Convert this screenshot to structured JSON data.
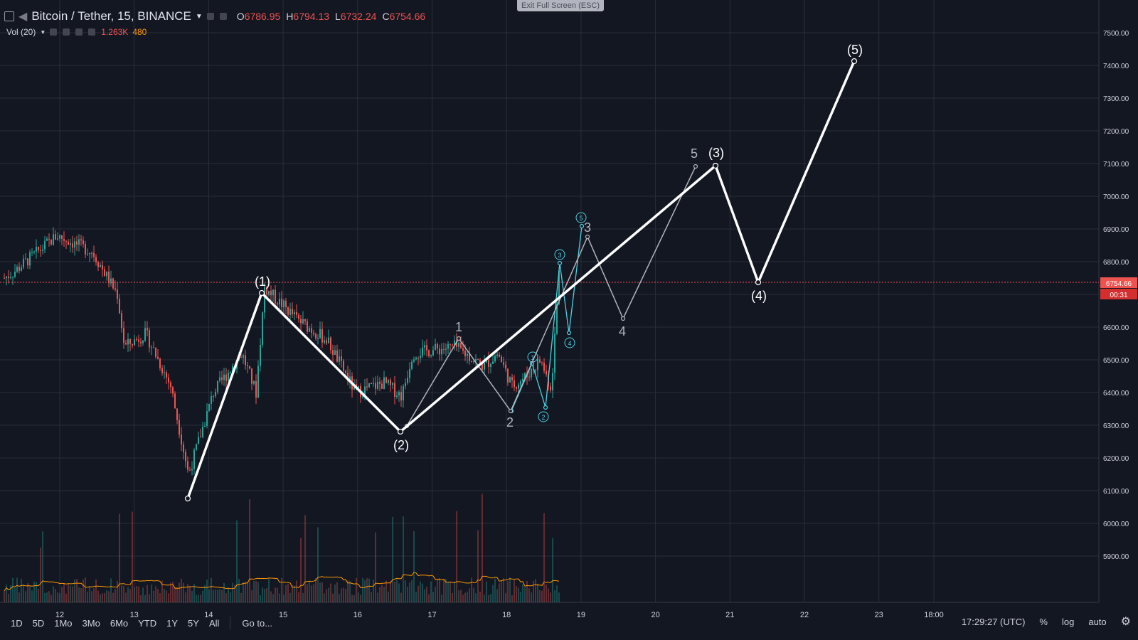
{
  "header": {
    "symbol": "Bitcoin / Tether, 15, BINANCE",
    "ohlc": [
      {
        "label": "O",
        "value": "6786.95"
      },
      {
        "label": "H",
        "value": "6794.13"
      },
      {
        "label": "L",
        "value": "6732.24"
      },
      {
        "label": "C",
        "value": "6754.66"
      }
    ],
    "volume_label": "Vol (20)",
    "volume_value1": "1.263K",
    "volume_value2": "480"
  },
  "exit_fullscreen": "Exit Full Screen (ESC)",
  "price_axis": {
    "ticks": [
      "7500.00",
      "7400.00",
      "7300.00",
      "7200.00",
      "7100.00",
      "7000.00",
      "6900.00",
      "6800.00",
      "6700.00",
      "6600.00",
      "6500.00",
      "6400.00",
      "6300.00",
      "6200.00",
      "6100.00",
      "6000.00",
      "5900.00"
    ],
    "current_price": "6754.66",
    "countdown": "00:31"
  },
  "time_axis": {
    "ticks": [
      "12",
      "13",
      "14",
      "15",
      "16",
      "17",
      "18",
      "19",
      "20",
      "21",
      "22",
      "23",
      "18:00"
    ]
  },
  "waves": {
    "primary_labels": [
      "(1)",
      "(2)",
      "(3)",
      "(4)",
      "(5)"
    ],
    "intermediate_labels": [
      "1",
      "2",
      "3",
      "4",
      "5"
    ],
    "minor_labels": [
      "1",
      "2",
      "3",
      "4",
      "5"
    ]
  },
  "bottom": {
    "ranges": [
      "1D",
      "5D",
      "1Mo",
      "3Mo",
      "6Mo",
      "YTD",
      "1Y",
      "5Y",
      "All"
    ],
    "goto": "Go to...",
    "time": "17:29:27 (UTC)",
    "percent": "%",
    "log": "log",
    "auto": "auto",
    "settings_icon": "gear-icon"
  },
  "colors": {
    "background": "#131722",
    "grid": "#2a2e39",
    "up": "#26a69a",
    "down": "#ef5350",
    "price_tag": "#ef5350",
    "wave_primary": "#ffffff",
    "wave_intermediate": "#b2b5be",
    "wave_minor": "#4dd0e1",
    "volume_ma": "#ff9800"
  }
}
